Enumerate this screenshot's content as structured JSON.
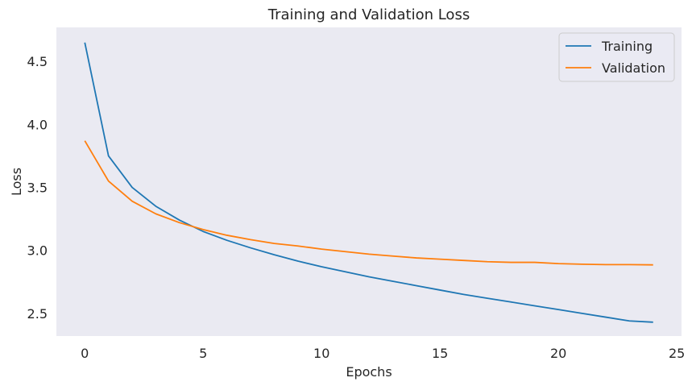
{
  "chart_data": {
    "type": "line",
    "title": "Training and Validation Loss",
    "xlabel": "Epochs",
    "ylabel": "Loss",
    "xlim": [
      -1.2,
      25.2
    ],
    "ylim": [
      2.32,
      4.77
    ],
    "x_ticks": [
      0,
      5,
      10,
      15,
      20,
      25
    ],
    "y_ticks": [
      2.5,
      3.0,
      3.5,
      4.0,
      4.5
    ],
    "x_tick_labels": [
      "0",
      "5",
      "10",
      "15",
      "20",
      "25"
    ],
    "y_tick_labels": [
      "2.5",
      "3.0",
      "3.5",
      "4.0",
      "4.5"
    ],
    "grid": false,
    "legend_position": "top-right",
    "background": "#eaeaf2",
    "x": [
      0,
      1,
      2,
      3,
      4,
      5,
      6,
      7,
      8,
      9,
      10,
      11,
      12,
      13,
      14,
      15,
      16,
      17,
      18,
      19,
      20,
      21,
      22,
      23,
      24
    ],
    "series": [
      {
        "name": "Training",
        "color": "#1f77b4",
        "values": [
          4.65,
          3.75,
          3.5,
          3.35,
          3.24,
          3.15,
          3.08,
          3.02,
          2.965,
          2.915,
          2.87,
          2.83,
          2.79,
          2.755,
          2.72,
          2.685,
          2.65,
          2.62,
          2.59,
          2.56,
          2.53,
          2.5,
          2.47,
          2.44,
          2.43
        ]
      },
      {
        "name": "Validation",
        "color": "#ff7f0e",
        "values": [
          3.87,
          3.55,
          3.39,
          3.29,
          3.22,
          3.165,
          3.12,
          3.085,
          3.055,
          3.035,
          3.01,
          2.99,
          2.97,
          2.955,
          2.94,
          2.93,
          2.92,
          2.91,
          2.905,
          2.905,
          2.895,
          2.89,
          2.887,
          2.887,
          2.885
        ]
      }
    ]
  }
}
